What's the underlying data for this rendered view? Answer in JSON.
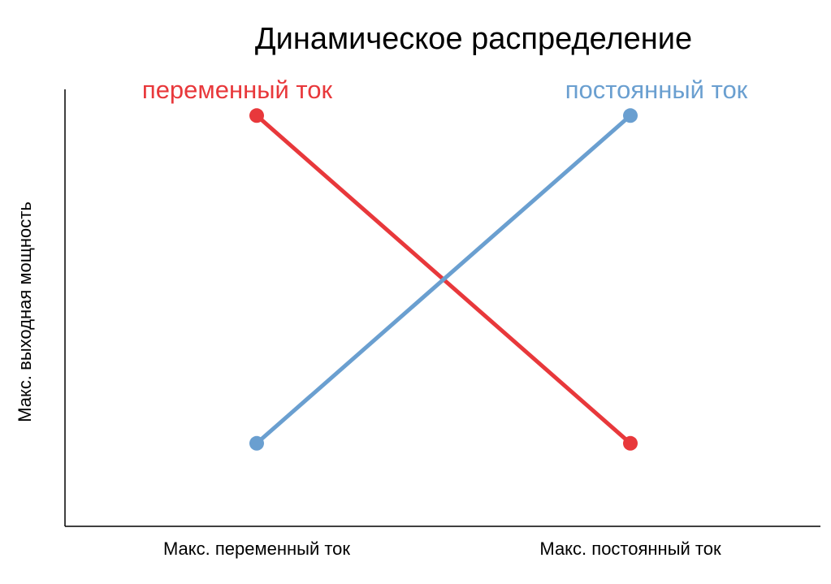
{
  "chart_data": {
    "type": "line",
    "title": "Динамическое распределение",
    "y_label": "Макс. выходная мощность",
    "categories": [
      "Макс. переменный ток",
      "Макс. постоянный ток"
    ],
    "series": [
      {
        "name": "переменный ток",
        "color": "#e8383b",
        "values": [
          0.94,
          0.19
        ]
      },
      {
        "name": "постоянный ток",
        "color": "#6a9fd0",
        "values": [
          0.19,
          0.94
        ]
      }
    ],
    "ylim": [
      0,
      1
    ]
  }
}
